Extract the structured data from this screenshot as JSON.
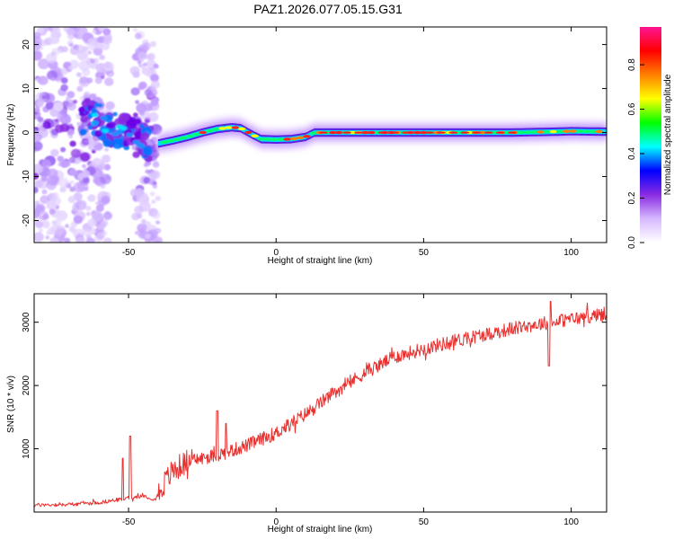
{
  "figure_title": "PAZ1.2026.077.05.15.G31",
  "chart_data": [
    {
      "type": "heatmap",
      "xlabel": "Height of straight line (km)",
      "ylabel": "Frequency (Hz)",
      "xlim": [
        -82,
        112
      ],
      "ylim": [
        -25,
        24
      ],
      "x_ticks": [
        -50,
        0,
        50,
        100
      ],
      "y_ticks": [
        -20,
        -10,
        0,
        10,
        20
      ],
      "colorbar": {
        "label": "Normalized spectral amplitude",
        "range": [
          0.0,
          0.97
        ],
        "ticks": [
          0.0,
          0.2,
          0.4,
          0.6,
          0.8
        ],
        "colors": [
          "#ffffff",
          "#d6b8ff",
          "#8a2be2",
          "#0000ff",
          "#00ffff",
          "#00ff00",
          "#ffff00",
          "#ff8000",
          "#ff0000",
          "#ff1493"
        ]
      },
      "ridge": {
        "x": [
          -40,
          -35,
          -30,
          -25,
          -20,
          -15,
          -12,
          -8,
          -5,
          0,
          5,
          10,
          13,
          20,
          30,
          50,
          80,
          95,
          100,
          112
        ],
        "freq": [
          -2.5,
          -1.8,
          -1.0,
          0.0,
          0.8,
          1.2,
          1.0,
          -0.5,
          -1.5,
          -1.6,
          -1.5,
          -1.0,
          0.0,
          0.0,
          0.0,
          0.0,
          0.0,
          0.2,
          0.3,
          0.2
        ]
      }
    },
    {
      "type": "line",
      "xlabel": "Height of straight line (km)",
      "ylabel": "SNR (10 * v/v)",
      "xlim": [
        -82,
        112
      ],
      "ylim": [
        0,
        3450
      ],
      "x_ticks": [
        -50,
        0,
        50,
        100
      ],
      "y_ticks": [
        1000,
        2000,
        3000
      ],
      "color": "#e8302f",
      "trend": {
        "x": [
          -82,
          -70,
          -60,
          -50,
          -45,
          -41,
          -38,
          -35,
          -30,
          -20,
          -10,
          0,
          10,
          20,
          30,
          40,
          50,
          60,
          70,
          80,
          90,
          100,
          112
        ],
        "y": [
          110,
          120,
          150,
          220,
          260,
          200,
          450,
          650,
          800,
          900,
          1050,
          1250,
          1550,
          1900,
          2200,
          2450,
          2580,
          2700,
          2800,
          2900,
          2980,
          3050,
          3130
        ]
      },
      "spikes": [
        {
          "x": -52,
          "y": 850
        },
        {
          "x": -49.5,
          "y": 1200
        },
        {
          "x": -20,
          "y": 1600
        },
        {
          "x": -17,
          "y": 1400
        },
        {
          "x": 93,
          "y": 3330
        },
        {
          "x": 92.5,
          "y": 2310
        }
      ]
    }
  ]
}
